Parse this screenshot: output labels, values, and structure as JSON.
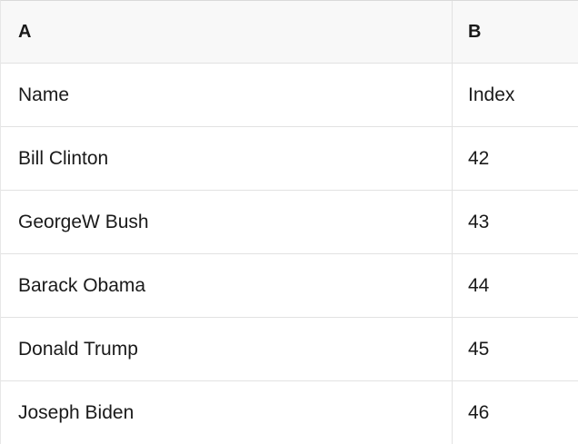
{
  "table": {
    "columns": [
      {
        "label": "A"
      },
      {
        "label": "B"
      }
    ],
    "rows": [
      {
        "a": "Name",
        "b": "Index"
      },
      {
        "a": "Bill Clinton",
        "b": "42"
      },
      {
        "a": "GeorgeW Bush",
        "b": "43"
      },
      {
        "a": "Barack Obama",
        "b": "44"
      },
      {
        "a": "Donald Trump",
        "b": "45"
      },
      {
        "a": "Joseph Biden",
        "b": "46"
      }
    ]
  },
  "colors": {
    "header_background": "#f8f8f8",
    "border": "#e2e2e2",
    "text": "#1a1a1a",
    "row_background": "#ffffff"
  }
}
